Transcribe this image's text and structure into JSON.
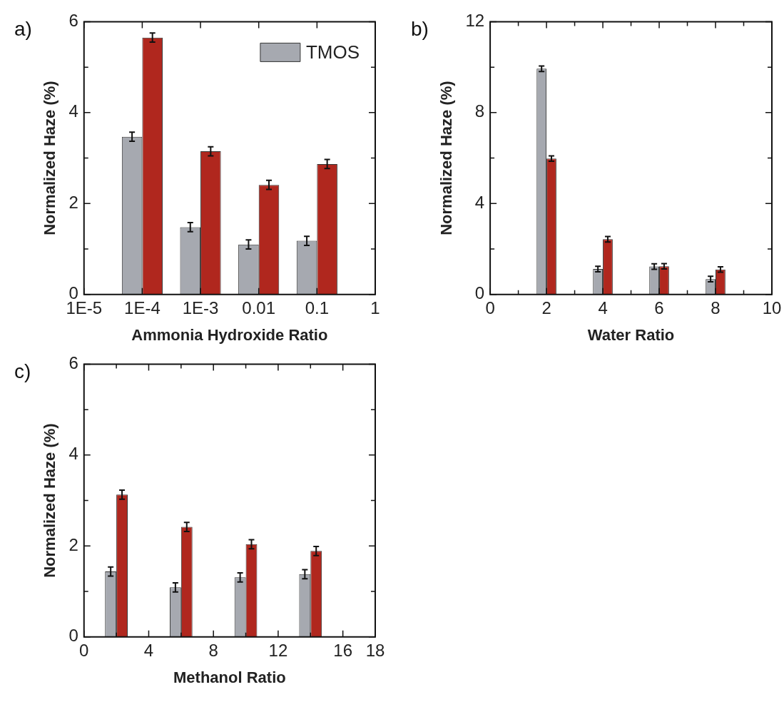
{
  "chart_data": [
    {
      "type": "bar",
      "title": "a)",
      "xlabel": "Ammonia Hydroxide Ratio",
      "ylabel": "Normalized Haze (%)",
      "x": [
        0.0001,
        0.001,
        0.01,
        0.1
      ],
      "log": "x",
      "xlim": [
        1e-05,
        1
      ],
      "xticks": [
        {
          "value": 1e-05,
          "label": "1E-5"
        },
        {
          "value": 0.0001,
          "label": "1E-4"
        },
        {
          "value": 0.001,
          "label": "1E-3"
        },
        0.01,
        0.1,
        1
      ],
      "ylim": [
        0,
        6
      ],
      "yticks": [
        0,
        {
          "value": 1,
          "label": null
        },
        2,
        {
          "value": 3,
          "label": null
        },
        4,
        {
          "value": 5,
          "label": null
        },
        6
      ],
      "legend": "top right",
      "series": [
        {
          "name": "TMOS",
          "color": "#a6a9b0",
          "values": [
            3.47,
            1.48,
            1.1,
            1.18
          ],
          "errors": [
            0.1,
            0.1,
            0.1,
            0.1
          ]
        },
        {
          "color": "#b0271e",
          "values": [
            5.65,
            3.15,
            2.41,
            2.87
          ],
          "errors": [
            0.1,
            0.1,
            0.1,
            0.1
          ]
        }
      ]
    },
    {
      "type": "bar",
      "title": "b)",
      "xlabel": "Water Ratio",
      "ylabel": "Normalized Haze (%)",
      "x": [
        2,
        4,
        6,
        8
      ],
      "xlim": [
        0,
        10
      ],
      "xticks": [
        0,
        {
          "value": 1,
          "label": null
        },
        2,
        {
          "value": 3,
          "label": null
        },
        4,
        {
          "value": 5,
          "label": null
        },
        6,
        {
          "value": 7,
          "label": null
        },
        8,
        {
          "value": 9,
          "label": null
        },
        10
      ],
      "ylim": [
        0,
        12
      ],
      "yticks": [
        0,
        {
          "value": 2,
          "label": null
        },
        4,
        {
          "value": 6,
          "label": null
        },
        8,
        {
          "value": 10,
          "label": null
        },
        12
      ],
      "series": [
        {
          "color": "#a6a9b0",
          "values": [
            9.93,
            1.12,
            1.23,
            0.68
          ],
          "errors": [
            0.12,
            0.12,
            0.12,
            0.12
          ]
        },
        {
          "color": "#b0271e",
          "values": [
            5.98,
            2.43,
            1.24,
            1.1
          ],
          "errors": [
            0.12,
            0.12,
            0.12,
            0.12
          ]
        }
      ]
    },
    {
      "type": "bar",
      "title": "c)",
      "xlabel": "Methanol Ratio",
      "ylabel": "Normalized Haze (%)",
      "x": [
        2,
        6,
        10,
        14
      ],
      "xlim": [
        0,
        18
      ],
      "xticks": [
        0,
        {
          "value": 2,
          "label": null
        },
        4,
        {
          "value": 6,
          "label": null
        },
        8,
        {
          "value": 10,
          "label": null
        },
        12,
        {
          "value": 14,
          "label": null
        },
        16,
        18
      ],
      "ylim": [
        0,
        6
      ],
      "yticks": [
        0,
        {
          "value": 1,
          "label": null
        },
        2,
        {
          "value": 3,
          "label": null
        },
        4,
        {
          "value": 5,
          "label": null
        },
        6
      ],
      "series": [
        {
          "color": "#a6a9b0",
          "values": [
            1.44,
            1.09,
            1.31,
            1.38
          ],
          "errors": [
            0.1,
            0.1,
            0.1,
            0.1
          ]
        },
        {
          "color": "#b0271e",
          "values": [
            3.13,
            2.42,
            2.04,
            1.89
          ],
          "errors": [
            0.1,
            0.1,
            0.1,
            0.1
          ]
        }
      ]
    }
  ]
}
